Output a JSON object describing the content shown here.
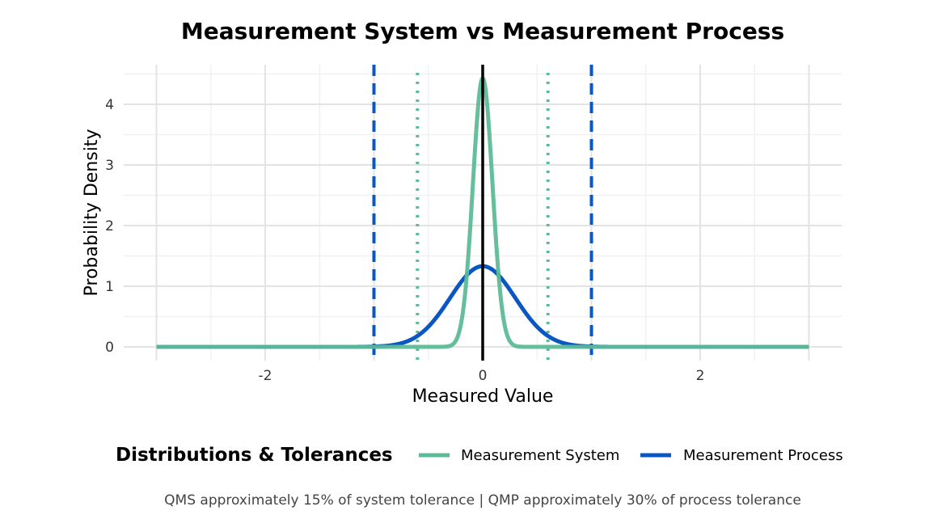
{
  "chart_data": {
    "type": "line",
    "title": "Measurement System vs Measurement Process",
    "xlabel": "Measured Value",
    "ylabel": "Probability Density",
    "xlim": [
      -3,
      3
    ],
    "ylim": [
      0,
      4.5
    ],
    "x_ticks": [
      -2,
      0,
      2
    ],
    "y_ticks": [
      0,
      1,
      2,
      3,
      4
    ],
    "grid": true,
    "series": [
      {
        "name": "Measurement System",
        "distribution": "normal",
        "mean": 0,
        "sd": 0.09,
        "peak": 4.43,
        "color": "#5dbb97"
      },
      {
        "name": "Measurement Process",
        "distribution": "normal",
        "mean": 0,
        "sd": 0.3,
        "peak": 1.33,
        "color": "#0a57c4"
      }
    ],
    "reference_lines": {
      "center": {
        "x": 0,
        "color": "#000000",
        "style": "solid"
      },
      "system_tolerance": {
        "x": [
          -0.6,
          0.6
        ],
        "color": "#5dbb97",
        "style": "dotted"
      },
      "process_tolerance": {
        "x": [
          -1,
          1
        ],
        "color": "#0a57c4",
        "style": "dashed"
      }
    },
    "legend": {
      "title": "Distributions & Tolerances",
      "position": "bottom"
    },
    "caption": "QMS approximately 15% of system tolerance | QMP approximately 30% of process tolerance"
  }
}
